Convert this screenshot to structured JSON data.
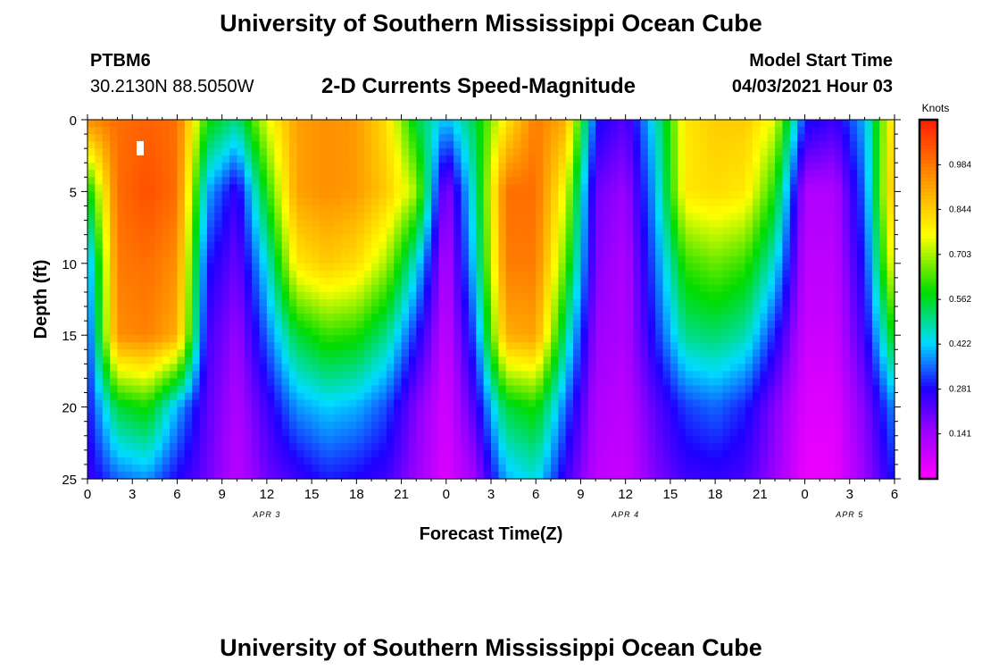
{
  "header": {
    "title_top": "University of Southern Mississippi Ocean Cube",
    "title_bottom": "University of Southern Mississippi Ocean Cube",
    "station_id": "PTBM6",
    "station_coords": "30.2130N  88.5050W",
    "plot_title": "2-D Currents Speed-Magnitude",
    "model_label": "Model Start Time",
    "model_time": "04/03/2021 Hour 03"
  },
  "chart_data": {
    "type": "heatmap",
    "title": "2-D Currents Speed-Magnitude",
    "xlabel": "Forecast Time(Z)",
    "ylabel": "Depth (ft)",
    "x_hours_range": [
      0,
      54
    ],
    "ylim": [
      0,
      25
    ],
    "x_tick_labels": [
      "0",
      "3",
      "6",
      "9",
      "12",
      "15",
      "18",
      "21",
      "0",
      "3",
      "6",
      "9",
      "12",
      "15",
      "18",
      "21",
      "0",
      "3",
      "6"
    ],
    "y_tick_labels": [
      "0",
      "5",
      "10",
      "15",
      "20",
      "25"
    ],
    "date_labels": [
      {
        "hour": 12,
        "text": "APR 3"
      },
      {
        "hour": 36,
        "text": "APR 4"
      },
      {
        "hour": 51,
        "text": "APR 5"
      }
    ],
    "colorbar": {
      "unit": "Knots",
      "min": 0.0,
      "max": 1.125,
      "tick_labels": [
        "0.141",
        "0.281",
        "0.422",
        "0.562",
        "0.703",
        "0.844",
        "0.984"
      ]
    },
    "grid": {
      "times_hours": [
        0,
        2,
        4,
        6,
        8,
        10,
        12,
        14,
        16,
        18,
        20,
        22,
        24,
        26,
        28,
        30,
        32,
        34,
        36,
        38,
        40,
        42,
        44,
        46,
        48,
        50,
        52,
        54
      ],
      "depths_ft": [
        0,
        5,
        10,
        15,
        20,
        25
      ],
      "speed_knots": [
        [
          0.95,
          1.0,
          1.02,
          1.0,
          0.6,
          0.5,
          0.75,
          0.92,
          0.95,
          0.93,
          0.82,
          0.55,
          0.4,
          0.55,
          0.8,
          0.98,
          0.9,
          0.3,
          0.22,
          0.45,
          0.8,
          0.85,
          0.85,
          0.75,
          0.3,
          0.25,
          0.4,
          0.85
        ],
        [
          0.55,
          1.0,
          1.05,
          1.0,
          0.4,
          0.25,
          0.6,
          0.92,
          0.95,
          0.93,
          0.85,
          0.7,
          0.15,
          0.5,
          1.0,
          1.0,
          0.75,
          0.2,
          0.15,
          0.4,
          0.8,
          0.82,
          0.8,
          0.6,
          0.12,
          0.12,
          0.35,
          0.9
        ],
        [
          0.35,
          0.98,
          1.0,
          0.95,
          0.3,
          0.2,
          0.45,
          0.8,
          0.85,
          0.82,
          0.7,
          0.45,
          0.1,
          0.45,
          0.98,
          0.98,
          0.65,
          0.18,
          0.12,
          0.35,
          0.62,
          0.66,
          0.62,
          0.45,
          0.1,
          0.1,
          0.3,
          0.8
        ],
        [
          0.3,
          0.95,
          0.97,
          0.9,
          0.25,
          0.15,
          0.35,
          0.55,
          0.62,
          0.6,
          0.5,
          0.3,
          0.08,
          0.35,
          0.9,
          0.92,
          0.5,
          0.15,
          0.12,
          0.3,
          0.5,
          0.52,
          0.48,
          0.3,
          0.08,
          0.08,
          0.25,
          0.6
        ],
        [
          0.28,
          0.55,
          0.6,
          0.4,
          0.22,
          0.12,
          0.25,
          0.38,
          0.42,
          0.4,
          0.33,
          0.18,
          0.06,
          0.25,
          0.55,
          0.6,
          0.35,
          0.12,
          0.1,
          0.22,
          0.32,
          0.35,
          0.3,
          0.18,
          0.05,
          0.05,
          0.18,
          0.38
        ],
        [
          0.25,
          0.35,
          0.38,
          0.28,
          0.2,
          0.1,
          0.2,
          0.25,
          0.3,
          0.28,
          0.25,
          0.15,
          0.05,
          0.15,
          0.4,
          0.45,
          0.25,
          0.1,
          0.08,
          0.18,
          0.25,
          0.26,
          0.24,
          0.15,
          0.03,
          0.03,
          0.15,
          0.3
        ]
      ]
    }
  }
}
